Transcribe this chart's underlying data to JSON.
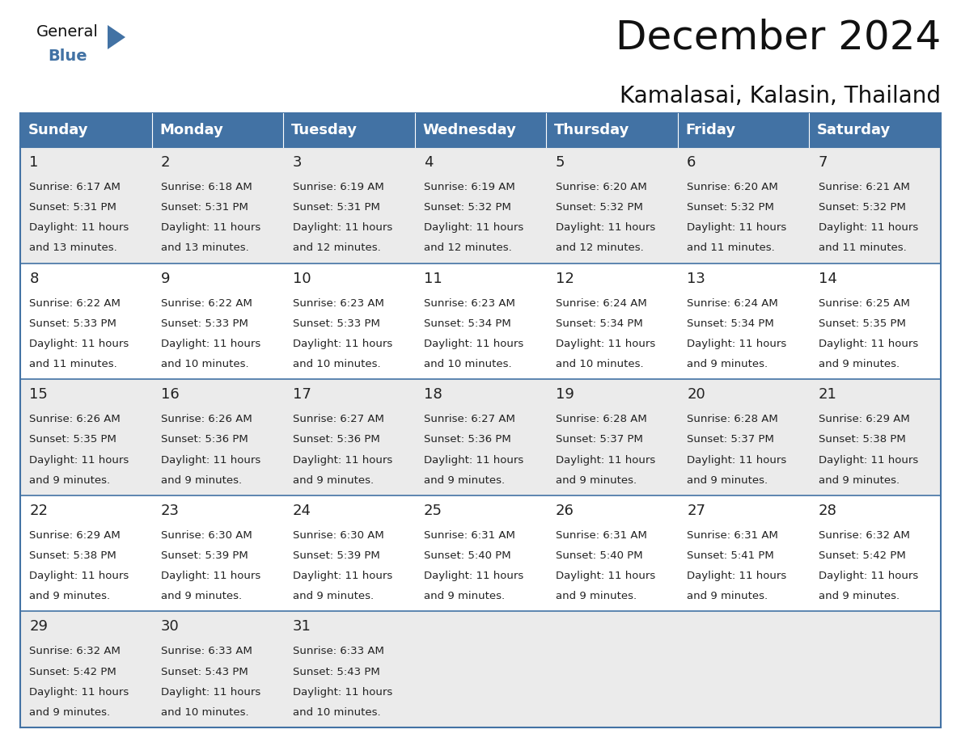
{
  "title": "December 2024",
  "subtitle": "Kamalasai, Kalasin, Thailand",
  "header_color": "#4272a4",
  "header_text_color": "#FFFFFF",
  "cell_bg_white": "#FFFFFF",
  "cell_bg_grey": "#EBEBEB",
  "border_color": "#4272a4",
  "text_color": "#222222",
  "day_headers": [
    "Sunday",
    "Monday",
    "Tuesday",
    "Wednesday",
    "Thursday",
    "Friday",
    "Saturday"
  ],
  "title_fontsize": 36,
  "subtitle_fontsize": 20,
  "header_fontsize": 13,
  "day_num_fontsize": 13,
  "cell_fontsize": 9.5,
  "logo_general_fontsize": 14,
  "logo_blue_fontsize": 14,
  "days": [
    {
      "day": 1,
      "col": 0,
      "row": 0,
      "sunrise": "6:17 AM",
      "sunset": "5:31 PM",
      "dl_suffix": "13 minutes."
    },
    {
      "day": 2,
      "col": 1,
      "row": 0,
      "sunrise": "6:18 AM",
      "sunset": "5:31 PM",
      "dl_suffix": "13 minutes."
    },
    {
      "day": 3,
      "col": 2,
      "row": 0,
      "sunrise": "6:19 AM",
      "sunset": "5:31 PM",
      "dl_suffix": "12 minutes."
    },
    {
      "day": 4,
      "col": 3,
      "row": 0,
      "sunrise": "6:19 AM",
      "sunset": "5:32 PM",
      "dl_suffix": "12 minutes."
    },
    {
      "day": 5,
      "col": 4,
      "row": 0,
      "sunrise": "6:20 AM",
      "sunset": "5:32 PM",
      "dl_suffix": "12 minutes."
    },
    {
      "day": 6,
      "col": 5,
      "row": 0,
      "sunrise": "6:20 AM",
      "sunset": "5:32 PM",
      "dl_suffix": "11 minutes."
    },
    {
      "day": 7,
      "col": 6,
      "row": 0,
      "sunrise": "6:21 AM",
      "sunset": "5:32 PM",
      "dl_suffix": "11 minutes."
    },
    {
      "day": 8,
      "col": 0,
      "row": 1,
      "sunrise": "6:22 AM",
      "sunset": "5:33 PM",
      "dl_suffix": "11 minutes."
    },
    {
      "day": 9,
      "col": 1,
      "row": 1,
      "sunrise": "6:22 AM",
      "sunset": "5:33 PM",
      "dl_suffix": "10 minutes."
    },
    {
      "day": 10,
      "col": 2,
      "row": 1,
      "sunrise": "6:23 AM",
      "sunset": "5:33 PM",
      "dl_suffix": "10 minutes."
    },
    {
      "day": 11,
      "col": 3,
      "row": 1,
      "sunrise": "6:23 AM",
      "sunset": "5:34 PM",
      "dl_suffix": "10 minutes."
    },
    {
      "day": 12,
      "col": 4,
      "row": 1,
      "sunrise": "6:24 AM",
      "sunset": "5:34 PM",
      "dl_suffix": "10 minutes."
    },
    {
      "day": 13,
      "col": 5,
      "row": 1,
      "sunrise": "6:24 AM",
      "sunset": "5:34 PM",
      "dl_suffix": "9 minutes."
    },
    {
      "day": 14,
      "col": 6,
      "row": 1,
      "sunrise": "6:25 AM",
      "sunset": "5:35 PM",
      "dl_suffix": "9 minutes."
    },
    {
      "day": 15,
      "col": 0,
      "row": 2,
      "sunrise": "6:26 AM",
      "sunset": "5:35 PM",
      "dl_suffix": "9 minutes."
    },
    {
      "day": 16,
      "col": 1,
      "row": 2,
      "sunrise": "6:26 AM",
      "sunset": "5:36 PM",
      "dl_suffix": "9 minutes."
    },
    {
      "day": 17,
      "col": 2,
      "row": 2,
      "sunrise": "6:27 AM",
      "sunset": "5:36 PM",
      "dl_suffix": "9 minutes."
    },
    {
      "day": 18,
      "col": 3,
      "row": 2,
      "sunrise": "6:27 AM",
      "sunset": "5:36 PM",
      "dl_suffix": "9 minutes."
    },
    {
      "day": 19,
      "col": 4,
      "row": 2,
      "sunrise": "6:28 AM",
      "sunset": "5:37 PM",
      "dl_suffix": "9 minutes."
    },
    {
      "day": 20,
      "col": 5,
      "row": 2,
      "sunrise": "6:28 AM",
      "sunset": "5:37 PM",
      "dl_suffix": "9 minutes."
    },
    {
      "day": 21,
      "col": 6,
      "row": 2,
      "sunrise": "6:29 AM",
      "sunset": "5:38 PM",
      "dl_suffix": "9 minutes."
    },
    {
      "day": 22,
      "col": 0,
      "row": 3,
      "sunrise": "6:29 AM",
      "sunset": "5:38 PM",
      "dl_suffix": "9 minutes."
    },
    {
      "day": 23,
      "col": 1,
      "row": 3,
      "sunrise": "6:30 AM",
      "sunset": "5:39 PM",
      "dl_suffix": "9 minutes."
    },
    {
      "day": 24,
      "col": 2,
      "row": 3,
      "sunrise": "6:30 AM",
      "sunset": "5:39 PM",
      "dl_suffix": "9 minutes."
    },
    {
      "day": 25,
      "col": 3,
      "row": 3,
      "sunrise": "6:31 AM",
      "sunset": "5:40 PM",
      "dl_suffix": "9 minutes."
    },
    {
      "day": 26,
      "col": 4,
      "row": 3,
      "sunrise": "6:31 AM",
      "sunset": "5:40 PM",
      "dl_suffix": "9 minutes."
    },
    {
      "day": 27,
      "col": 5,
      "row": 3,
      "sunrise": "6:31 AM",
      "sunset": "5:41 PM",
      "dl_suffix": "9 minutes."
    },
    {
      "day": 28,
      "col": 6,
      "row": 3,
      "sunrise": "6:32 AM",
      "sunset": "5:42 PM",
      "dl_suffix": "9 minutes."
    },
    {
      "day": 29,
      "col": 0,
      "row": 4,
      "sunrise": "6:32 AM",
      "sunset": "5:42 PM",
      "dl_suffix": "9 minutes."
    },
    {
      "day": 30,
      "col": 1,
      "row": 4,
      "sunrise": "6:33 AM",
      "sunset": "5:43 PM",
      "dl_suffix": "10 minutes."
    },
    {
      "day": 31,
      "col": 2,
      "row": 4,
      "sunrise": "6:33 AM",
      "sunset": "5:43 PM",
      "dl_suffix": "10 minutes."
    }
  ]
}
